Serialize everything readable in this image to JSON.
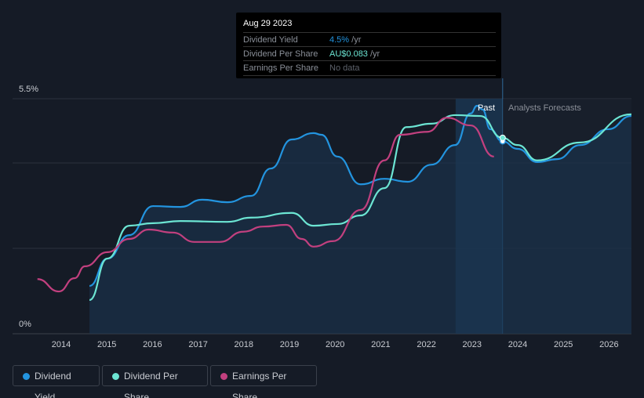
{
  "tooltip": {
    "date": "Aug 29 2023",
    "rows": [
      {
        "label": "Dividend Yield",
        "value": "4.5%",
        "unit": " /yr",
        "color": "#2394df"
      },
      {
        "label": "Dividend Per Share",
        "value": "AU$0.083",
        "unit": " /yr",
        "color": "#6ce5d3"
      },
      {
        "label": "Earnings Per Share",
        "value": "No data",
        "unit": "",
        "color": "#6a6f78"
      }
    ]
  },
  "legend": [
    {
      "label": "Dividend Yield",
      "color": "#2394df"
    },
    {
      "label": "Dividend Per Share",
      "color": "#6ce5d3"
    },
    {
      "label": "Earnings Per Share",
      "color": "#c2407f"
    }
  ],
  "chart_data": {
    "type": "line",
    "ylim": [
      0,
      5.5
    ],
    "xlim": [
      2013.0,
      2026.5
    ],
    "y_tick_labels": [
      "5.5%",
      "0%"
    ],
    "x_ticks": [
      2014,
      2015,
      2016,
      2017,
      2018,
      2019,
      2020,
      2021,
      2022,
      2023,
      2024,
      2025,
      2026
    ],
    "past_label": "Past",
    "forecast_label": "Analysts Forecasts",
    "forecast_start": 2023.67,
    "past_band_start": 2022.64,
    "series": [
      {
        "name": "Dividend Yield",
        "color": "#2394df",
        "fill": true,
        "points": [
          [
            2014.62,
            1.12
          ],
          [
            2015.01,
            1.76
          ],
          [
            2015.49,
            2.31
          ],
          [
            2016.01,
            2.99
          ],
          [
            2016.61,
            2.97
          ],
          [
            2017.09,
            3.14
          ],
          [
            2017.64,
            3.08
          ],
          [
            2018.16,
            3.23
          ],
          [
            2018.59,
            3.87
          ],
          [
            2019.05,
            4.55
          ],
          [
            2019.53,
            4.7
          ],
          [
            2019.7,
            4.66
          ],
          [
            2020.05,
            4.15
          ],
          [
            2020.56,
            3.5
          ],
          [
            2021.08,
            3.63
          ],
          [
            2021.59,
            3.56
          ],
          [
            2022.11,
            3.96
          ],
          [
            2022.63,
            4.42
          ],
          [
            2022.97,
            5.16
          ],
          [
            2023.11,
            5.34
          ],
          [
            2023.23,
            5.25
          ],
          [
            2023.4,
            4.79
          ],
          [
            2023.66,
            4.51
          ],
          [
            2024.0,
            4.33
          ],
          [
            2024.43,
            4.02
          ],
          [
            2024.86,
            4.09
          ],
          [
            2025.37,
            4.42
          ],
          [
            2025.98,
            4.79
          ],
          [
            2026.49,
            5.1
          ]
        ]
      },
      {
        "name": "Dividend Per Share",
        "color": "#6ce5d3",
        "points": [
          [
            2014.62,
            0.79
          ],
          [
            2015.01,
            1.76
          ],
          [
            2015.49,
            2.53
          ],
          [
            2016.01,
            2.59
          ],
          [
            2016.61,
            2.64
          ],
          [
            2017.64,
            2.62
          ],
          [
            2018.16,
            2.72
          ],
          [
            2019.05,
            2.83
          ],
          [
            2019.53,
            2.53
          ],
          [
            2020.05,
            2.57
          ],
          [
            2020.56,
            2.77
          ],
          [
            2021.08,
            3.41
          ],
          [
            2021.56,
            4.84
          ],
          [
            2022.11,
            4.92
          ],
          [
            2022.63,
            5.12
          ],
          [
            2023.18,
            5.1
          ],
          [
            2023.66,
            4.59
          ],
          [
            2024.0,
            4.42
          ],
          [
            2024.43,
            4.06
          ],
          [
            2025.37,
            4.48
          ],
          [
            2026.49,
            5.14
          ]
        ]
      },
      {
        "name": "Earnings Per Share",
        "color": "#c2407f",
        "points": [
          [
            2013.48,
            1.28
          ],
          [
            2013.95,
            0.99
          ],
          [
            2014.29,
            1.3
          ],
          [
            2014.52,
            1.58
          ],
          [
            2015.01,
            1.91
          ],
          [
            2015.49,
            2.22
          ],
          [
            2015.92,
            2.44
          ],
          [
            2016.44,
            2.37
          ],
          [
            2016.92,
            2.15
          ],
          [
            2017.47,
            2.15
          ],
          [
            2017.99,
            2.39
          ],
          [
            2018.42,
            2.51
          ],
          [
            2018.93,
            2.55
          ],
          [
            2019.27,
            2.22
          ],
          [
            2019.53,
            2.04
          ],
          [
            2019.96,
            2.17
          ],
          [
            2020.56,
            2.9
          ],
          [
            2021.08,
            4.06
          ],
          [
            2021.42,
            4.66
          ],
          [
            2022.02,
            4.73
          ],
          [
            2022.45,
            5.06
          ],
          [
            2022.97,
            4.88
          ],
          [
            2023.48,
            4.15
          ]
        ]
      }
    ]
  }
}
